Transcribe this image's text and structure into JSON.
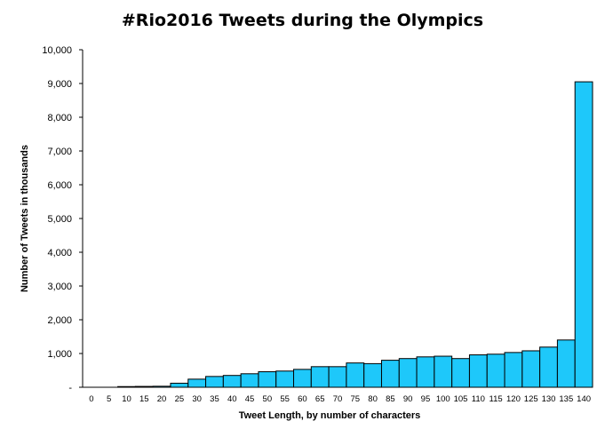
{
  "chart_data": {
    "type": "bar",
    "title": "#Rio2016 Tweets during the Olympics",
    "xlabel": "Tweet Length, by number of characters",
    "ylabel": "Number of Tweets in thousands",
    "ylim": [
      0,
      10000
    ],
    "yticks": [
      0,
      1000,
      2000,
      3000,
      4000,
      5000,
      6000,
      7000,
      8000,
      9000,
      10000
    ],
    "ytick_labels": [
      "-",
      "1,000",
      "2,000",
      "3,000",
      "4,000",
      "5,000",
      "6,000",
      "7,000",
      "8,000",
      "9,000",
      "10,000"
    ],
    "categories": [
      "0",
      "5",
      "10",
      "15",
      "20",
      "25",
      "30",
      "35",
      "40",
      "45",
      "50",
      "55",
      "60",
      "65",
      "70",
      "75",
      "80",
      "85",
      "90",
      "95",
      "100",
      "105",
      "110",
      "115",
      "120",
      "125",
      "130",
      "135",
      "140"
    ],
    "values": [
      0,
      0,
      20,
      25,
      30,
      120,
      240,
      320,
      350,
      400,
      460,
      480,
      530,
      610,
      610,
      720,
      700,
      800,
      850,
      900,
      920,
      850,
      960,
      980,
      1030,
      1080,
      1190,
      1400,
      9050
    ],
    "grid": false,
    "legend": "none",
    "bar_color": "#1EC8FA",
    "bar_edge_color": "#000000"
  }
}
